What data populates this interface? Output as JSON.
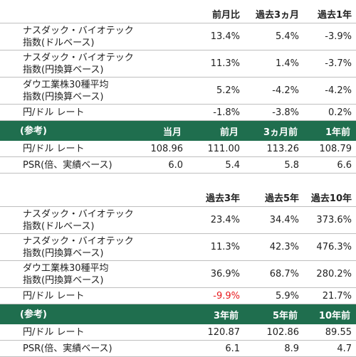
{
  "table1": {
    "headers": [
      "",
      "前月比",
      "過去3ヵ月",
      "過去1年"
    ],
    "rows": [
      {
        "label_line1": "ナスダック・バイオテック",
        "label_line2": "指数(ドルベース)",
        "values": [
          "13.4%",
          "5.4%",
          "-3.9%"
        ]
      },
      {
        "label_line1": "ナスダック・バイオテック",
        "label_line2": "指数(円換算ベース)",
        "values": [
          "11.3%",
          "1.4%",
          "-3.7%"
        ]
      },
      {
        "label_line1": "ダウ工業株30種平均",
        "label_line2": "指数(円換算ベース)",
        "values": [
          "5.2%",
          "-4.2%",
          "-4.2%"
        ]
      },
      {
        "label": "円/ドル レート",
        "values": [
          "-1.8%",
          "-3.8%",
          "0.2%"
        ]
      }
    ],
    "ref_headers": [
      "(参考)",
      "当月",
      "前月",
      "3ヵ月前",
      "1年前"
    ],
    "ref_rows": [
      {
        "label": "円/ドル レート",
        "values": [
          "108.96",
          "111.00",
          "113.26",
          "108.79"
        ]
      },
      {
        "label": "PSR(倍、実績ベース)",
        "values": [
          "6.0",
          "5.4",
          "5.8",
          "6.6"
        ]
      }
    ]
  },
  "table2": {
    "headers": [
      "",
      "過去3年",
      "過去5年",
      "過去10年"
    ],
    "rows": [
      {
        "label_line1": "ナスダック・バイオテック",
        "label_line2": "指数(ドルベース)",
        "values": [
          "23.4%",
          "34.4%",
          "373.6%"
        ]
      },
      {
        "label_line1": "ナスダック・バイオテック",
        "label_line2": "指数(円換算ベース)",
        "values": [
          "11.3%",
          "42.3%",
          "476.3%"
        ]
      },
      {
        "label_line1": "ダウ工業株30種平均",
        "label_line2": "指数(円換算ベース)",
        "values": [
          "36.9%",
          "68.7%",
          "280.2%"
        ]
      },
      {
        "label": "円/ドル レート",
        "values": [
          "-9.9%",
          "5.9%",
          "21.7%"
        ]
      }
    ],
    "ref_headers": [
      "(参考)",
      "3年前",
      "5年前",
      "10年前"
    ],
    "ref_rows": [
      {
        "label": "円/ドル レート",
        "values": [
          "120.87",
          "102.86",
          "89.55"
        ]
      },
      {
        "label": "PSR(倍、実績ベース)",
        "values": [
          "6.1",
          "8.9",
          "4.7"
        ]
      }
    ]
  },
  "colors": {
    "header_bg": "#1f6e4e",
    "negative_highlight": "#e8191d",
    "rule": "#bfbfbf"
  }
}
